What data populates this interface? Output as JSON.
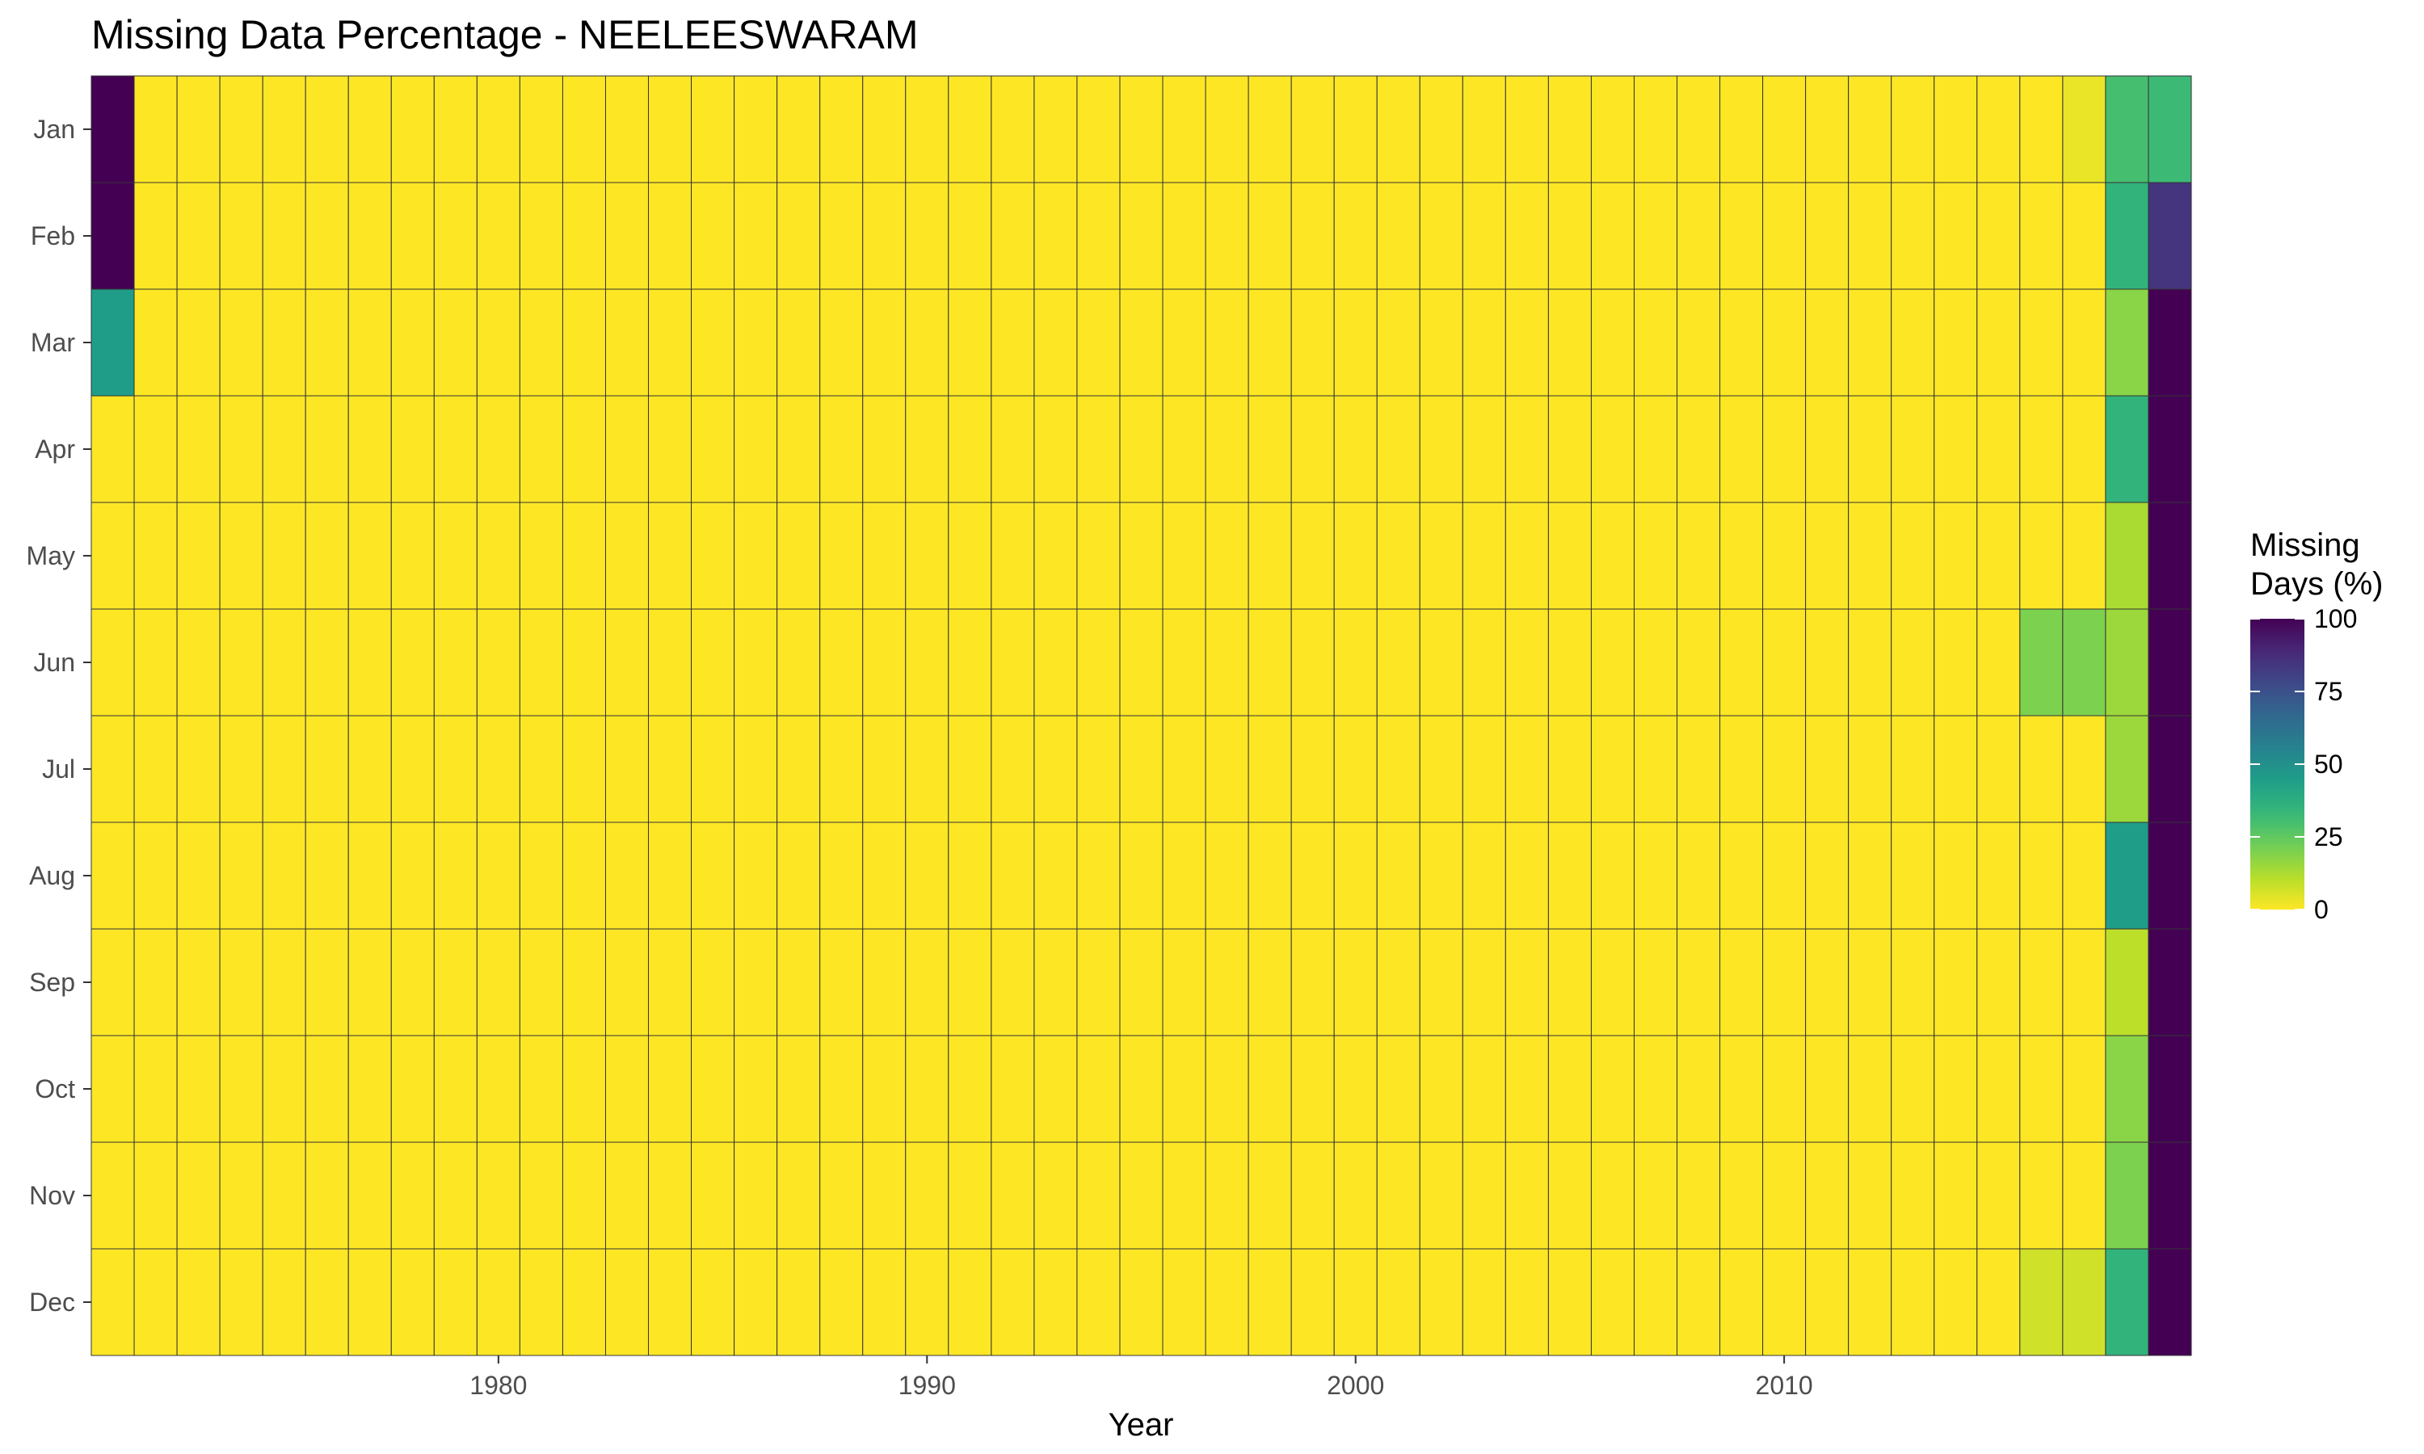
{
  "chart_data": {
    "type": "heatmap",
    "title": "Missing Data Percentage - NEELEESWARAM",
    "xlabel": "Year",
    "ylabel": "",
    "x": [
      1971,
      1972,
      1973,
      1974,
      1975,
      1976,
      1977,
      1978,
      1979,
      1980,
      1981,
      1982,
      1983,
      1984,
      1985,
      1986,
      1987,
      1988,
      1989,
      1990,
      1991,
      1992,
      1993,
      1994,
      1995,
      1996,
      1997,
      1998,
      1999,
      2000,
      2001,
      2002,
      2003,
      2004,
      2005,
      2006,
      2007,
      2008,
      2009,
      2010,
      2011,
      2012,
      2013,
      2014,
      2015,
      2016,
      2017,
      2018,
      2019
    ],
    "x_ticks": [
      1980,
      1990,
      2000,
      2010
    ],
    "y_categories": [
      "Jan",
      "Feb",
      "Mar",
      "Apr",
      "May",
      "Jun",
      "Jul",
      "Aug",
      "Sep",
      "Oct",
      "Nov",
      "Dec"
    ],
    "default_value": 0,
    "nonzero_cells": [
      {
        "year": 1971,
        "month": "Jan",
        "value": 100
      },
      {
        "year": 1971,
        "month": "Feb",
        "value": 100
      },
      {
        "year": 1971,
        "month": "Mar",
        "value": 45
      },
      {
        "year": 2016,
        "month": "Jun",
        "value": 20
      },
      {
        "year": 2016,
        "month": "Dec",
        "value": 7
      },
      {
        "year": 2017,
        "month": "Jan",
        "value": 3
      },
      {
        "year": 2017,
        "month": "Jun",
        "value": 20
      },
      {
        "year": 2017,
        "month": "Dec",
        "value": 7
      },
      {
        "year": 2018,
        "month": "Jan",
        "value": 30
      },
      {
        "year": 2018,
        "month": "Feb",
        "value": 35
      },
      {
        "year": 2018,
        "month": "Mar",
        "value": 18
      },
      {
        "year": 2018,
        "month": "Apr",
        "value": 35
      },
      {
        "year": 2018,
        "month": "May",
        "value": 13
      },
      {
        "year": 2018,
        "month": "Jun",
        "value": 15
      },
      {
        "year": 2018,
        "month": "Jul",
        "value": 15
      },
      {
        "year": 2018,
        "month": "Aug",
        "value": 45
      },
      {
        "year": 2018,
        "month": "Sep",
        "value": 10
      },
      {
        "year": 2018,
        "month": "Oct",
        "value": 18
      },
      {
        "year": 2018,
        "month": "Nov",
        "value": 20
      },
      {
        "year": 2018,
        "month": "Dec",
        "value": 35
      },
      {
        "year": 2019,
        "month": "Jan",
        "value": 32
      },
      {
        "year": 2019,
        "month": "Feb",
        "value": 85
      },
      {
        "year": 2019,
        "month": "Mar",
        "value": 100
      },
      {
        "year": 2019,
        "month": "Apr",
        "value": 100
      },
      {
        "year": 2019,
        "month": "May",
        "value": 100
      },
      {
        "year": 2019,
        "month": "Jun",
        "value": 100
      },
      {
        "year": 2019,
        "month": "Jul",
        "value": 100
      },
      {
        "year": 2019,
        "month": "Aug",
        "value": 100
      },
      {
        "year": 2019,
        "month": "Sep",
        "value": 100
      },
      {
        "year": 2019,
        "month": "Oct",
        "value": 100
      },
      {
        "year": 2019,
        "month": "Nov",
        "value": 100
      },
      {
        "year": 2019,
        "month": "Dec",
        "value": 100
      }
    ],
    "color_scale": {
      "name": "viridis",
      "reversed": true,
      "limits": [
        0,
        100
      ],
      "stops": [
        "#fde725",
        "#b5de2b",
        "#6ece58",
        "#35b779",
        "#1f9e89",
        "#26828e",
        "#31688e",
        "#3e4989",
        "#482878",
        "#440154"
      ]
    },
    "legend": {
      "title_line1": "Missing",
      "title_line2": "Days (%)",
      "ticks": [
        100,
        75,
        50,
        25,
        0
      ],
      "position": "right"
    },
    "grid": false
  }
}
